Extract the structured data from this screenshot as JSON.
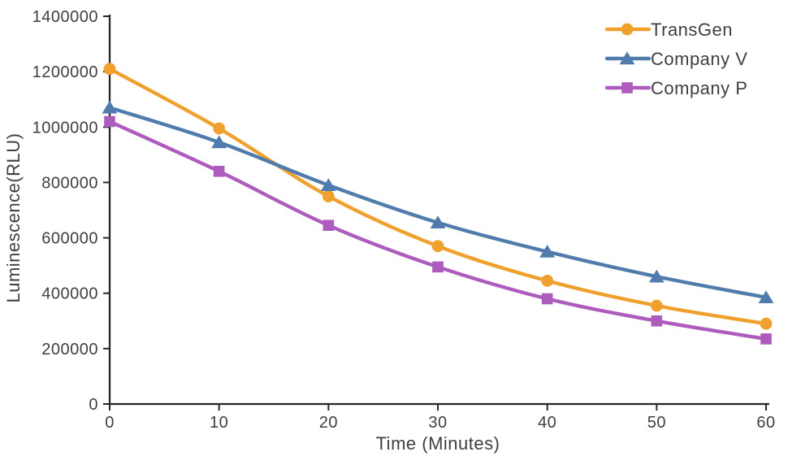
{
  "chart_data": {
    "type": "line",
    "x": [
      0,
      10,
      20,
      30,
      40,
      50,
      60
    ],
    "series": [
      {
        "name": "TransGen",
        "color": "#F0A12D",
        "marker": "circle",
        "values": [
          1210000,
          995000,
          750000,
          570000,
          445000,
          355000,
          290000
        ]
      },
      {
        "name": "Company V",
        "color": "#4F7CAC",
        "marker": "triangle",
        "values": [
          1070000,
          945000,
          790000,
          655000,
          550000,
          460000,
          385000
        ]
      },
      {
        "name": "Company P",
        "color": "#AE5BBE",
        "marker": "square",
        "values": [
          1020000,
          840000,
          645000,
          495000,
          380000,
          300000,
          235000
        ]
      }
    ],
    "title": "",
    "xlabel": "Time (Minutes)",
    "ylabel": "Luminescence(RLU)",
    "xlim": [
      0,
      60
    ],
    "ylim": [
      0,
      1400000
    ],
    "xticks": [
      0,
      10,
      20,
      30,
      40,
      50,
      60
    ],
    "yticks": [
      0,
      200000,
      400000,
      600000,
      800000,
      1000000,
      1200000,
      1400000
    ],
    "grid": false,
    "line_smooth": true,
    "legend_position": "top-right",
    "axis_color": "#262626",
    "text_color": "#3F3F3F"
  }
}
